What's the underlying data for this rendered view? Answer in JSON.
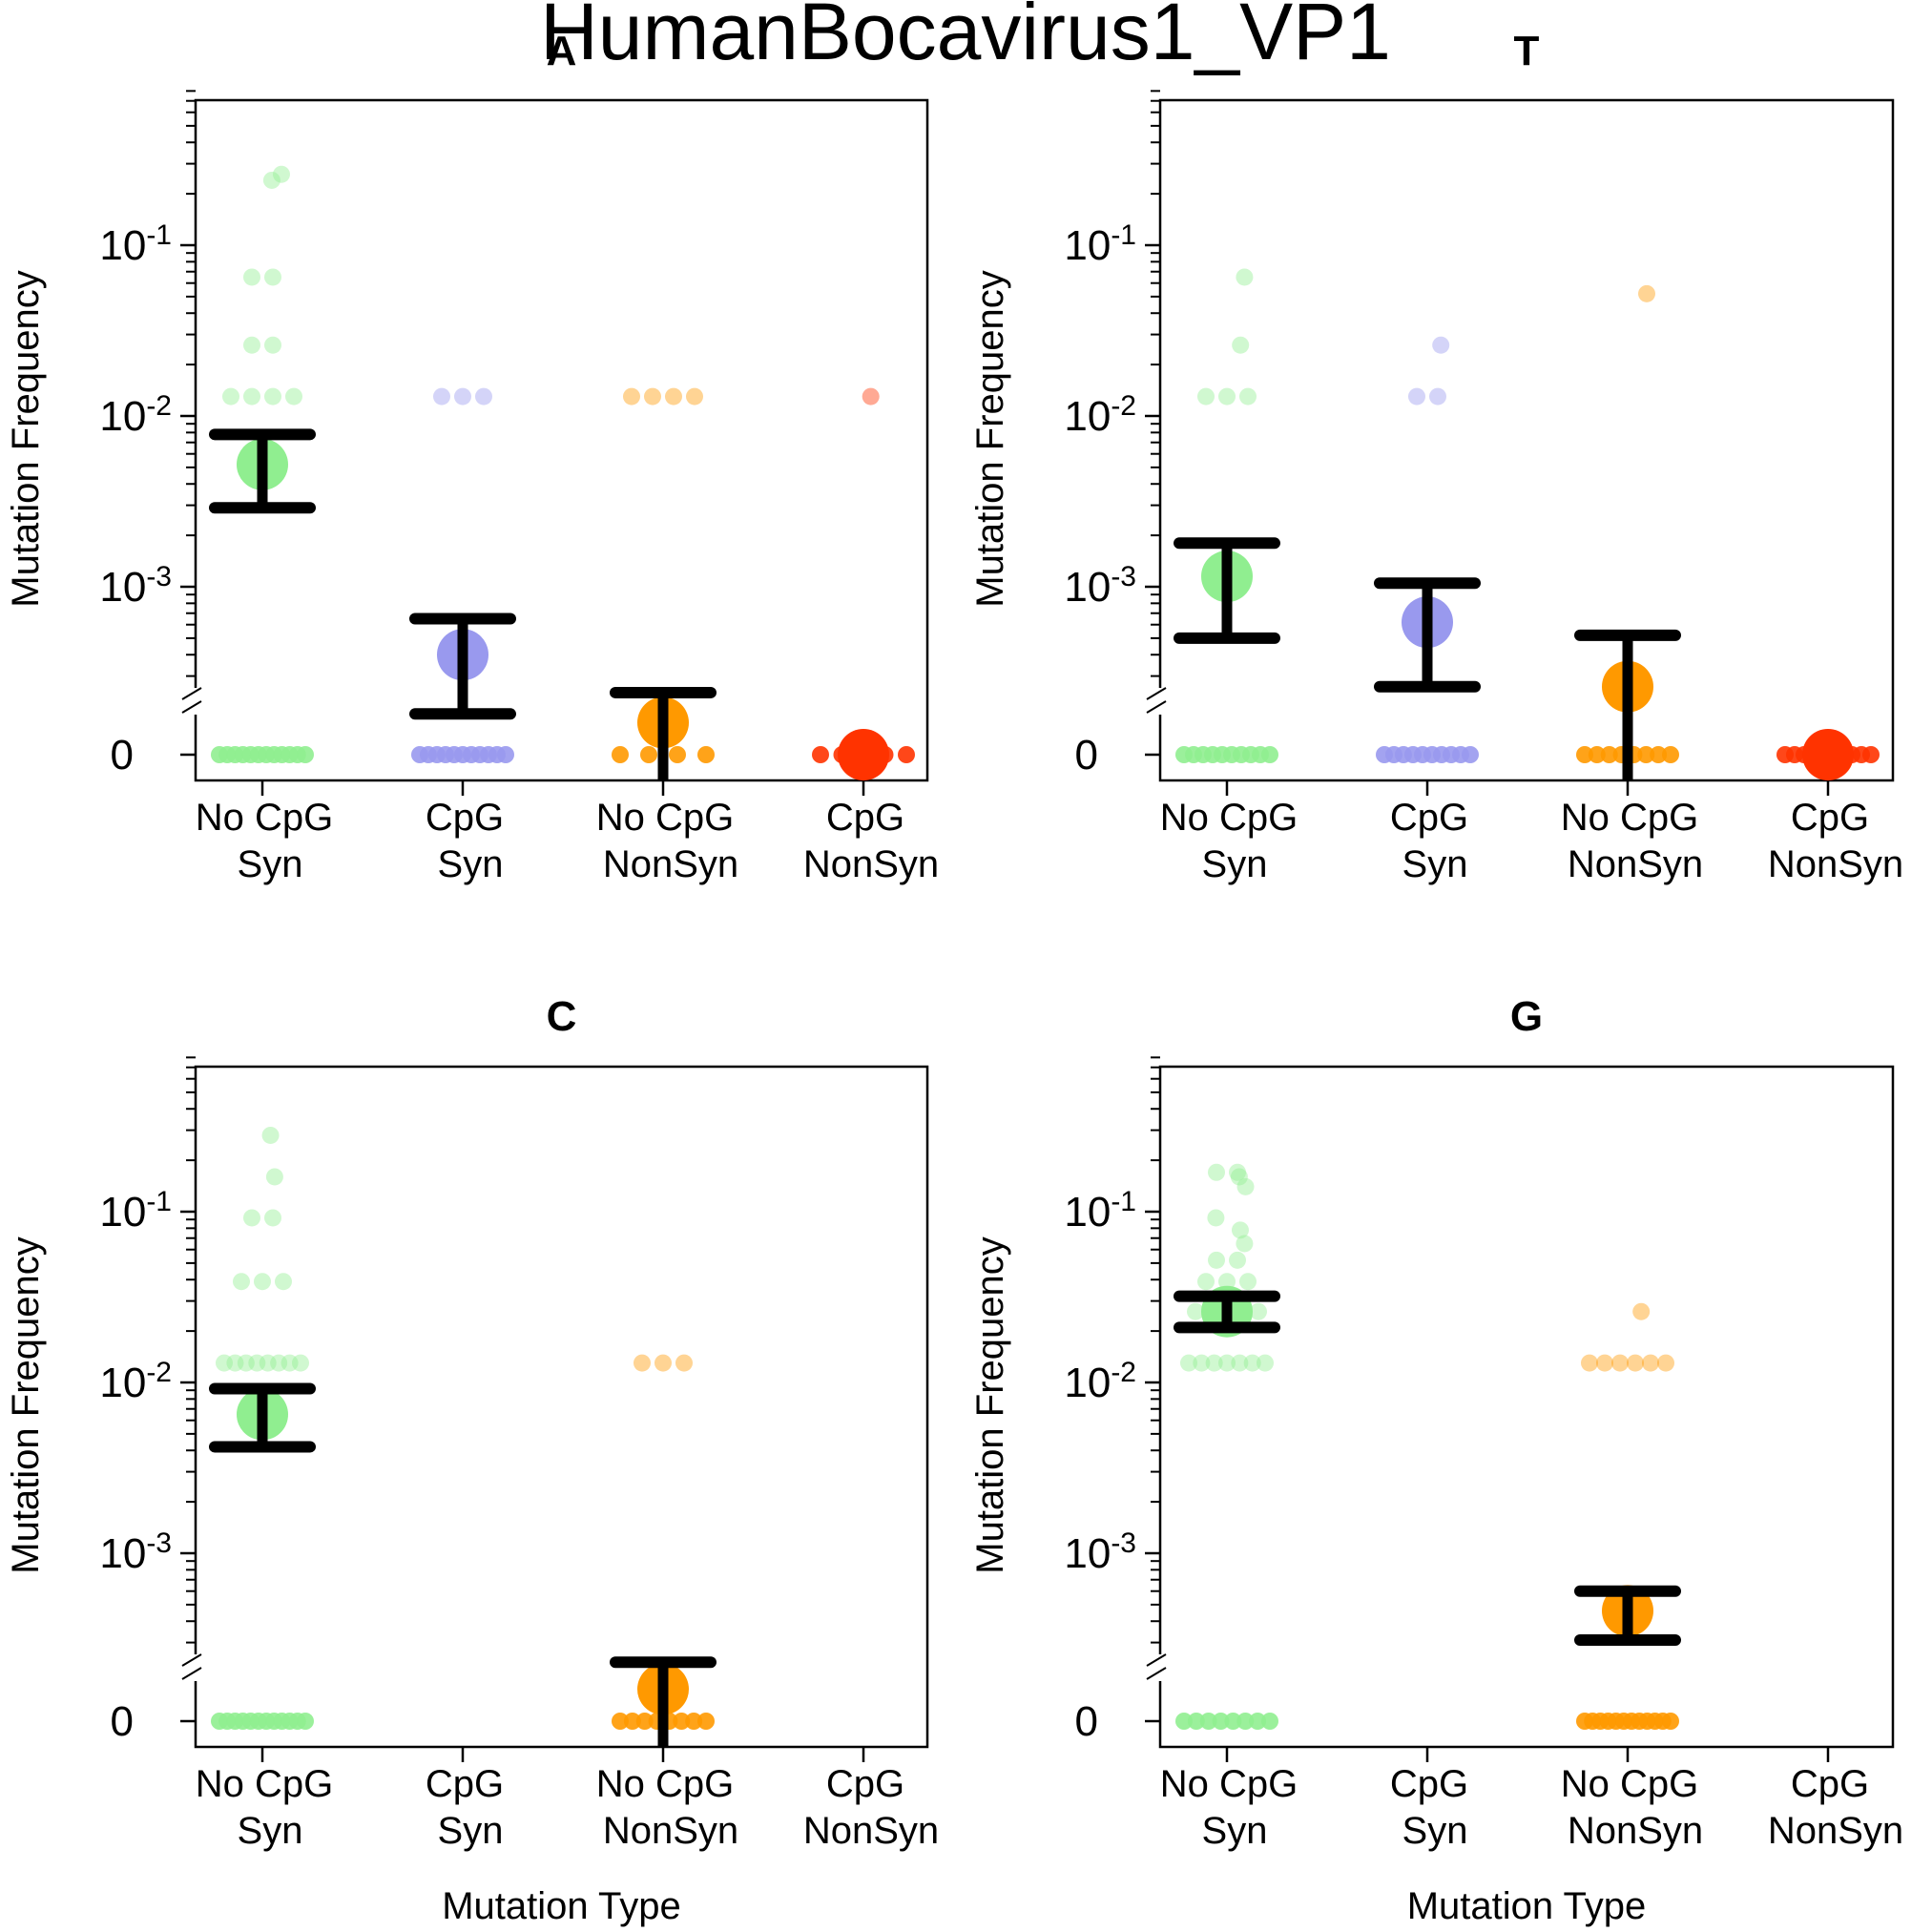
{
  "chart_data": {
    "type": "scatter",
    "title": "HumanBocavirus1_VP1",
    "ylabel": "Mutation Frequency",
    "xlabel": "Mutation Type",
    "y_scale": "log",
    "y_zero_break": true,
    "ylim": [
      0.0002,
      0.7
    ],
    "y_tick_labels": [
      "0",
      "10-3",
      "10-2",
      "10-1"
    ],
    "categories": [
      [
        "No CpG",
        "Syn"
      ],
      [
        "CpG",
        "Syn"
      ],
      [
        "No CpG",
        "NonSyn"
      ],
      [
        "CpG",
        "NonSyn"
      ]
    ],
    "series_colors": [
      "#90ee90",
      "#9999ee",
      "#ff9900",
      "#ff3300"
    ],
    "panels": [
      {
        "title": "A",
        "groups": [
          {
            "points": [
              0.26,
              0.24,
              0.065,
              0.065,
              0.026,
              0.026,
              0.013,
              0.013,
              0.013,
              0.013,
              0,
              0,
              0,
              0,
              0,
              0,
              0,
              0,
              0,
              0,
              0,
              0
            ],
            "mean": 0.0052,
            "ci": [
              0.0029,
              0.0078
            ]
          },
          {
            "points": [
              0.013,
              0.013,
              0.013,
              0,
              0,
              0,
              0,
              0,
              0,
              0,
              0,
              0,
              0,
              0
            ],
            "mean": 0.0004,
            "ci": [
              0.00018,
              0.00065
            ]
          },
          {
            "points": [
              0.013,
              0.013,
              0.013,
              0.013,
              0,
              0,
              0,
              0
            ],
            "mean": 0.00016,
            "ci": [
              0,
              0.00024
            ]
          },
          {
            "points": [
              0.013,
              0,
              0,
              0,
              0,
              0
            ],
            "mean": 6e-05,
            "ci": null
          }
        ]
      },
      {
        "title": "T",
        "groups": [
          {
            "points": [
              0.065,
              0.026,
              0.013,
              0.013,
              0.013,
              0,
              0,
              0,
              0,
              0,
              0,
              0,
              0,
              0,
              0
            ],
            "mean": 0.00115,
            "ci": [
              0.0005,
              0.0018
            ]
          },
          {
            "points": [
              0.026,
              0.013,
              0.013,
              0,
              0,
              0,
              0,
              0,
              0,
              0,
              0,
              0,
              0
            ],
            "mean": 0.00062,
            "ci": [
              0.00026,
              0.00105
            ]
          },
          {
            "points": [
              0.052,
              0,
              0,
              0,
              0,
              0,
              0,
              0,
              0
            ],
            "mean": 0.00026,
            "ci": [
              0,
              0.00052
            ]
          },
          {
            "points": [
              0,
              0,
              0,
              0,
              0,
              0,
              0,
              0,
              0,
              0
            ],
            "mean": 0,
            "ci": null
          }
        ]
      },
      {
        "title": "C",
        "groups": [
          {
            "points": [
              0.28,
              0.16,
              0.092,
              0.092,
              0.039,
              0.039,
              0.039,
              0.013,
              0.013,
              0.013,
              0.013,
              0.013,
              0.013,
              0.013,
              0.013,
              0,
              0,
              0,
              0,
              0,
              0,
              0,
              0,
              0,
              0,
              0,
              0
            ],
            "mean": 0.0065,
            "ci": [
              0.0042,
              0.0092
            ]
          },
          {
            "points": [],
            "mean": null,
            "ci": null
          },
          {
            "points": [
              0.013,
              0.013,
              0.013,
              0,
              0,
              0,
              0,
              0,
              0,
              0,
              0
            ],
            "mean": 0.00016,
            "ci": [
              0,
              0.00023
            ]
          },
          {
            "points": [],
            "mean": null,
            "ci": null
          }
        ]
      },
      {
        "title": "G",
        "groups": [
          {
            "points": [
              0.17,
              0.17,
              0.16,
              0.14,
              0.092,
              0.078,
              0.065,
              0.052,
              0.052,
              0.039,
              0.039,
              0.039,
              0.026,
              0.026,
              0.026,
              0.026,
              0.013,
              0.013,
              0.013,
              0.013,
              0.013,
              0.013,
              0.013,
              0,
              0,
              0,
              0,
              0,
              0,
              0,
              0
            ],
            "mean": 0.026,
            "ci": [
              0.021,
              0.032
            ]
          },
          {
            "points": [],
            "mean": null,
            "ci": null
          },
          {
            "points": [
              0.026,
              0.013,
              0.013,
              0.013,
              0.013,
              0.013,
              0.013,
              0,
              0,
              0,
              0,
              0,
              0,
              0,
              0,
              0,
              0,
              0,
              0
            ],
            "mean": 0.00046,
            "ci": [
              0.00031,
              0.0006
            ]
          },
          {
            "points": [],
            "mean": null,
            "ci": null
          }
        ]
      }
    ]
  }
}
